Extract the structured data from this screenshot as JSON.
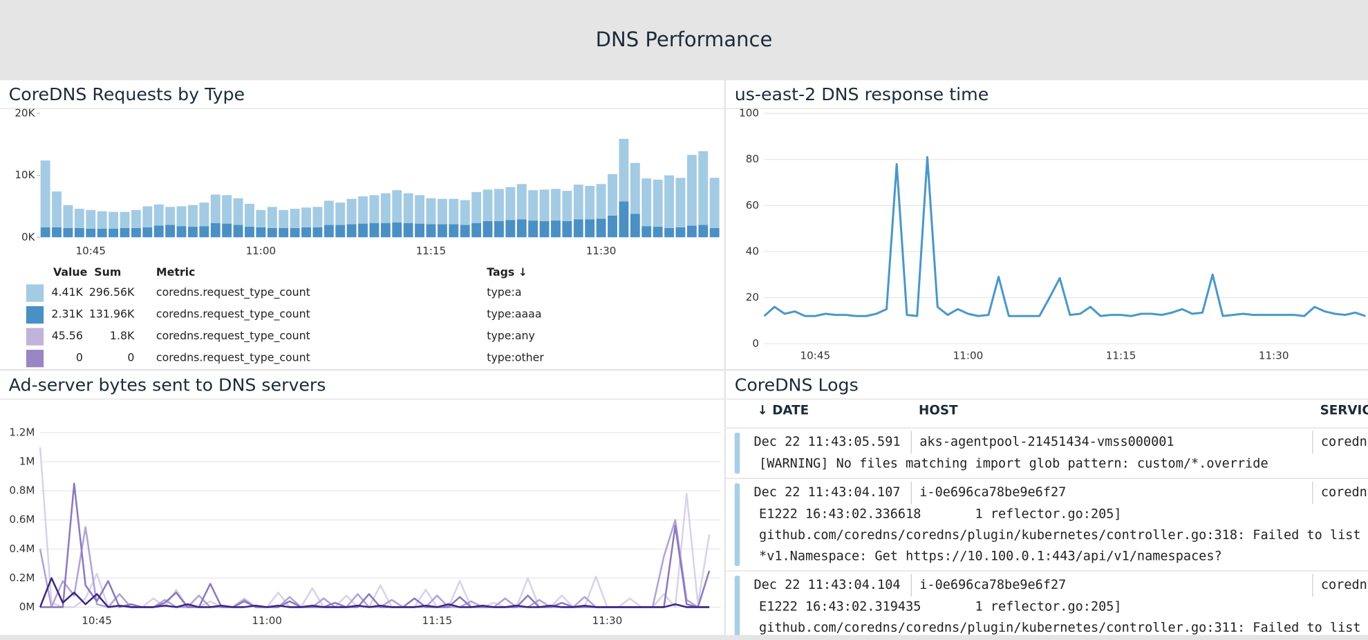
{
  "header": {
    "title": "DNS Performance"
  },
  "panels": [
    {
      "title": "CoreDNS Requests by Type",
      "chart": {
        "type": "bar",
        "stacked": true,
        "grid": false,
        "categories": [
          null,
          null,
          null,
          null,
          "10:45",
          null,
          null,
          null,
          null,
          null,
          null,
          null,
          null,
          null,
          null,
          null,
          null,
          null,
          null,
          "11:00",
          null,
          null,
          null,
          null,
          null,
          null,
          null,
          null,
          null,
          null,
          null,
          null,
          null,
          null,
          "11:15",
          null,
          null,
          null,
          null,
          null,
          null,
          null,
          null,
          null,
          null,
          null,
          null,
          null,
          null,
          "11:30",
          null,
          null,
          null,
          null,
          null,
          null,
          null,
          null,
          null,
          null
        ],
        "series": [
          {
            "color": "#4a90c4",
            "values": [
              1600,
              1600,
              1500,
              1500,
              1400,
              1400,
              1400,
              1500,
              1500,
              1600,
              1900,
              2000,
              1800,
              1700,
              1800,
              2300,
              2200,
              2000,
              1700,
              1600,
              1500,
              1500,
              1500,
              1600,
              1600,
              2000,
              2000,
              2100,
              2200,
              2300,
              2300,
              2400,
              2300,
              2200,
              2100,
              2100,
              2100,
              2000,
              2300,
              2600,
              2600,
              2800,
              2900,
              2700,
              2600,
              2700,
              2600,
              2900,
              2900,
              3000,
              3500,
              5800,
              3800,
              1800,
              1700,
              1500,
              1600,
              1900,
              2000,
              1500
            ]
          },
          {
            "color": "#a3cbe3",
            "values": [
              10800,
              5800,
              3700,
              3100,
              3000,
              2800,
              2700,
              2600,
              2900,
              3400,
              3400,
              2900,
              3200,
              3500,
              3800,
              4600,
              4600,
              4300,
              3700,
              2800,
              3400,
              2900,
              3100,
              3200,
              3300,
              3900,
              3600,
              4100,
              4400,
              4500,
              4800,
              5200,
              4800,
              4600,
              4200,
              4100,
              4100,
              4000,
              5000,
              5100,
              5200,
              5300,
              5700,
              4900,
              5100,
              5100,
              4900,
              5600,
              5400,
              5600,
              6700,
              10100,
              8200,
              7700,
              7600,
              8500,
              8000,
              11400,
              11900,
              8100
            ]
          }
        ],
        "ylim": [
          0,
          20000
        ],
        "yticks": [
          {
            "value": 0,
            "label": "0K"
          },
          {
            "value": 10000,
            "label": "10K"
          },
          {
            "value": 20000,
            "label": "20K"
          }
        ]
      },
      "legend_table": {
        "columns": [
          "Value",
          "Sum",
          "Metric",
          "Tags ↓"
        ],
        "rows": [
          {
            "color": "#a3cbe3",
            "cells": [
              "4.41K",
              "296.56K",
              "coredns.request_type_count",
              "type:a"
            ]
          },
          {
            "color": "#4a90c4",
            "cells": [
              "2.31K",
              "131.96K",
              "coredns.request_type_count",
              "type:aaaa"
            ]
          },
          {
            "color": "#c2b3da",
            "cells": [
              "45.56",
              "1.8K",
              "coredns.request_type_count",
              "type:any"
            ]
          },
          {
            "color": "#9a86c2",
            "cells": [
              "0",
              "0",
              "coredns.request_type_count",
              "type:other"
            ]
          }
        ]
      }
    },
    {
      "title": "us-east-2 DNS response time",
      "chart": {
        "type": "line",
        "grid": true,
        "categories": [
          null,
          null,
          null,
          null,
          null,
          "10:45",
          null,
          null,
          null,
          null,
          null,
          null,
          null,
          null,
          null,
          null,
          null,
          null,
          null,
          null,
          "11:00",
          null,
          null,
          null,
          null,
          null,
          null,
          null,
          null,
          null,
          null,
          null,
          null,
          null,
          null,
          "11:15",
          null,
          null,
          null,
          null,
          null,
          null,
          null,
          null,
          null,
          null,
          null,
          null,
          null,
          null,
          "11:30",
          null,
          null,
          null,
          null,
          null,
          null,
          null,
          null,
          null
        ],
        "series": [
          {
            "color": "#4a97c9",
            "values": [
              12,
              16,
              13,
              14,
              12,
              12,
              13,
              12.5,
              12.5,
              12,
              12,
              13,
              15,
              78,
              12.5,
              12,
              81,
              16,
              12.5,
              15,
              13,
              12,
              12.5,
              29,
              12,
              12,
              12,
              12,
              20,
              28.5,
              12.5,
              13,
              16,
              12,
              12.5,
              12.5,
              12,
              13,
              13,
              12.5,
              13.5,
              15,
              13,
              13.5,
              30,
              12,
              12.5,
              13,
              12.5,
              12.5,
              12.5,
              12.5,
              12.5,
              12,
              16,
              14,
              13,
              12.5,
              13.5,
              12
            ]
          }
        ],
        "ylim": [
          0,
          100
        ],
        "yticks": [
          0,
          20,
          40,
          60,
          80,
          100
        ]
      }
    },
    {
      "title": "Ad-server bytes sent to DNS servers",
      "chart": {
        "type": "line",
        "grid": true,
        "categories": [
          null,
          null,
          null,
          null,
          null,
          "10:45",
          null,
          null,
          null,
          null,
          null,
          null,
          null,
          null,
          null,
          null,
          null,
          null,
          null,
          null,
          "11:00",
          null,
          null,
          null,
          null,
          null,
          null,
          null,
          null,
          null,
          null,
          null,
          null,
          null,
          null,
          "11:15",
          null,
          null,
          null,
          null,
          null,
          null,
          null,
          null,
          null,
          null,
          null,
          null,
          null,
          null,
          "11:30",
          null,
          null,
          null,
          null,
          null,
          null,
          null,
          null,
          null
        ],
        "series": [
          {
            "color": "#d8d2ea",
            "values": [
              1100000,
              30000,
              0,
              0,
              60000,
              230000,
              0,
              0,
              20000,
              0,
              60000,
              0,
              120000,
              0,
              0,
              40000,
              0,
              0,
              60000,
              0,
              0,
              100000,
              0,
              0,
              130000,
              0,
              0,
              80000,
              0,
              0,
              150000,
              0,
              0,
              0,
              120000,
              0,
              0,
              180000,
              0,
              0,
              30000,
              0,
              0,
              200000,
              0,
              0,
              80000,
              0,
              0,
              210000,
              0,
              0,
              60000,
              0,
              0,
              90000,
              0,
              780000,
              20000,
              500000
            ]
          },
          {
            "color": "#b0a3d4",
            "values": [
              400000,
              0,
              180000,
              80000,
              550000,
              20000,
              0,
              90000,
              0,
              0,
              0,
              50000,
              0,
              0,
              80000,
              0,
              0,
              0,
              50000,
              0,
              0,
              0,
              70000,
              0,
              0,
              60000,
              0,
              0,
              90000,
              0,
              0,
              50000,
              0,
              0,
              0,
              80000,
              0,
              0,
              40000,
              0,
              0,
              60000,
              0,
              0,
              50000,
              0,
              0,
              0,
              70000,
              0,
              0,
              0,
              0,
              0,
              0,
              350000,
              600000,
              50000,
              0,
              0
            ]
          },
          {
            "color": "#8c79bd",
            "values": [
              0,
              0,
              0,
              850000,
              150000,
              40000,
              180000,
              0,
              20000,
              0,
              0,
              30000,
              100000,
              0,
              0,
              160000,
              0,
              0,
              40000,
              0,
              0,
              0,
              40000,
              0,
              0,
              0,
              30000,
              0,
              0,
              90000,
              0,
              0,
              0,
              60000,
              0,
              0,
              0,
              70000,
              0,
              0,
              0,
              0,
              0,
              80000,
              0,
              0,
              30000,
              0,
              0,
              0,
              0,
              0,
              0,
              0,
              0,
              0,
              560000,
              20000,
              0,
              250000
            ]
          },
          {
            "color": "#3b2584",
            "values": [
              0,
              200000,
              30000,
              100000,
              20000,
              90000,
              0,
              10000,
              0,
              0,
              0,
              10000,
              0,
              20000,
              0,
              0,
              10000,
              0,
              0,
              10000,
              0,
              10000,
              0,
              0,
              10000,
              0,
              0,
              0,
              10000,
              0,
              10000,
              0,
              0,
              0,
              10000,
              0,
              20000,
              0,
              0,
              10000,
              0,
              0,
              10000,
              0,
              0,
              10000,
              0,
              0,
              10000,
              0,
              0,
              0,
              0,
              0,
              0,
              0,
              20000,
              0,
              0,
              0
            ]
          }
        ],
        "ylim": [
          0,
          1200000
        ],
        "yticks": [
          {
            "value": 0,
            "label": "0M"
          },
          {
            "value": 200000,
            "label": "0.2M"
          },
          {
            "value": 400000,
            "label": "0.4M"
          },
          {
            "value": 600000,
            "label": "0.6M"
          },
          {
            "value": 800000,
            "label": "0.8M"
          },
          {
            "value": 1000000,
            "label": "1M"
          },
          {
            "value": 1200000,
            "label": "1.2M"
          }
        ]
      }
    },
    {
      "title": "CoreDNS Logs",
      "log_table": {
        "columns": [
          "↓ DATE",
          "HOST",
          "SERVICE"
        ],
        "entries": [
          {
            "date": "Dec 22 11:43:05.591",
            "host": "aks-agentpool-21451434-vmss000001",
            "service": "coredns",
            "message": [
              "[WARNING] No files matching import glob pattern: custom/*.override"
            ]
          },
          {
            "date": "Dec 22 11:43:04.107",
            "host": "i-0e696ca78be9e6f27",
            "service": "coredns",
            "message": [
              "E1222 16:43:02.336618       1 reflector.go:205]",
              "github.com/coredns/coredns/plugin/kubernetes/controller.go:318: Failed to list",
              "*v1.Namespace: Get https://10.100.0.1:443/api/v1/namespaces?"
            ]
          },
          {
            "date": "Dec 22 11:43:04.104",
            "host": "i-0e696ca78be9e6f27",
            "service": "coredns",
            "message": [
              "E1222 16:43:02.319435       1 reflector.go:205]",
              "github.com/coredns/coredns/plugin/kubernetes/controller.go:311: Failed to list"
            ]
          }
        ]
      }
    }
  ]
}
